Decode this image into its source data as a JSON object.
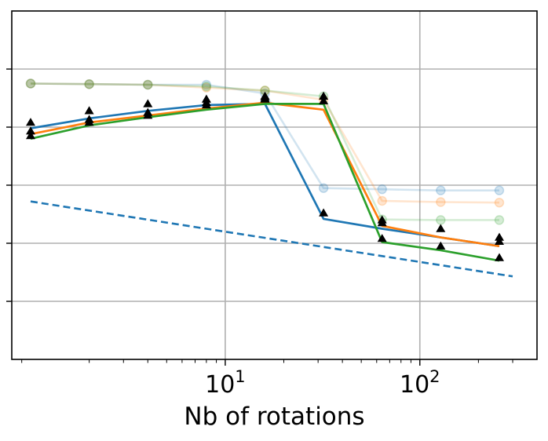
{
  "chart_data": {
    "type": "line",
    "title": "",
    "xlabel": "Nb of rotations",
    "ylabel": "",
    "xscale": "log",
    "xlim": [
      0.8,
      400
    ],
    "ylim": [
      0,
      6
    ],
    "grid": true,
    "legend": "none",
    "x_ticks": [
      {
        "value": 10,
        "base": "10",
        "exp": "1"
      },
      {
        "value": 100,
        "base": "10",
        "exp": "2"
      }
    ],
    "y_gridlines": [
      1,
      2,
      3,
      4,
      5
    ],
    "x": [
      1,
      2,
      4,
      8,
      16,
      32,
      64,
      128,
      256
    ],
    "series": [
      {
        "name": "blue",
        "color": "#1f77b4",
        "style": "solid",
        "values": [
          3.98,
          4.15,
          4.28,
          4.38,
          4.4,
          2.42,
          2.25,
          2.1,
          1.95
        ]
      },
      {
        "name": "orange",
        "color": "#ff7f0e",
        "style": "solid",
        "values": [
          3.88,
          4.08,
          4.2,
          4.32,
          4.42,
          4.3,
          2.3,
          2.1,
          1.95
        ]
      },
      {
        "name": "green",
        "color": "#2ca02c",
        "style": "solid",
        "values": [
          3.8,
          4.03,
          4.17,
          4.3,
          4.4,
          4.4,
          2.02,
          1.88,
          1.7
        ]
      },
      {
        "name": "blue-faded",
        "color": "#1f77b4",
        "style": "faded-markers",
        "values": [
          4.75,
          4.74,
          4.73,
          4.73,
          4.58,
          2.95,
          2.93,
          2.91,
          2.91
        ]
      },
      {
        "name": "orange-faded",
        "color": "#ff7f0e",
        "style": "faded-markers",
        "values": [
          4.75,
          4.74,
          4.73,
          4.68,
          4.63,
          4.47,
          2.73,
          2.71,
          2.7
        ]
      },
      {
        "name": "green-faded",
        "color": "#2ca02c",
        "style": "faded-markers",
        "values": [
          4.75,
          4.74,
          4.73,
          4.7,
          4.63,
          4.53,
          2.41,
          2.4,
          2.4
        ]
      },
      {
        "name": "reference",
        "color": "#1f77b4",
        "style": "dashed",
        "x": [
          1,
          300
        ],
        "values": [
          2.72,
          1.43
        ]
      }
    ],
    "triangle_markers": {
      "color": "#000000",
      "x": [
        1,
        2,
        4,
        8,
        16,
        32,
        64,
        128,
        256
      ],
      "groups": [
        [
          4.08,
          3.93,
          3.85
        ],
        [
          4.28,
          4.13,
          4.08
        ],
        [
          4.4,
          4.25,
          4.2
        ],
        [
          4.48,
          4.42,
          4.38
        ],
        [
          4.53,
          4.5,
          4.48
        ],
        [
          4.53,
          4.45,
          2.52
        ],
        [
          2.4,
          2.35,
          2.08
        ],
        [
          2.25,
          1.95
        ],
        [
          2.1,
          2.03,
          1.75
        ]
      ]
    }
  }
}
